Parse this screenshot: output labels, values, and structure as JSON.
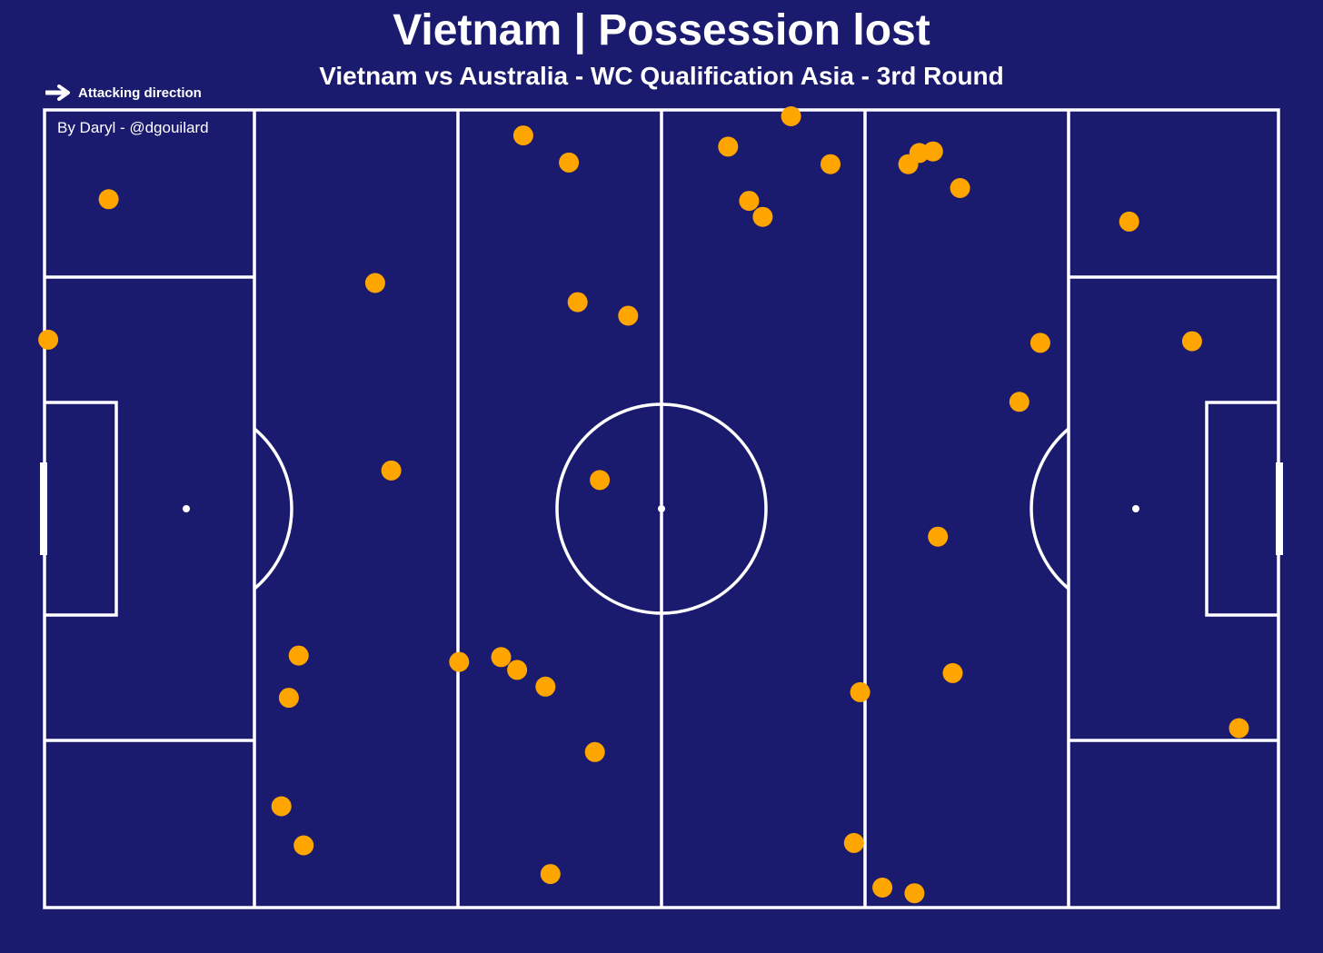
{
  "header": {
    "title": "Vietnam | Possession lost",
    "subtitle": "Vietnam vs Australia - WC Qualification Asia - 3rd Round"
  },
  "attacking_direction": {
    "label": "Attacking direction",
    "icon": "arrow-right-icon"
  },
  "credit": "By Daryl - @dgouilard",
  "colors": {
    "background": "#1a1a6e",
    "lines": "#ffffff",
    "marker": "#ffa500"
  },
  "chart_data": {
    "type": "scatter",
    "title": "Vietnam | Possession lost",
    "subtitle": "Vietnam vs Australia - WC Qualification Asia - 3rd Round",
    "xlim": [
      0,
      100
    ],
    "ylim": [
      0,
      100
    ],
    "grid": false,
    "marker_color": "#ffa500",
    "points": [
      {
        "x": 5.2,
        "y": 88.8
      },
      {
        "x": 0.3,
        "y": 71.2
      },
      {
        "x": 26.8,
        "y": 78.3
      },
      {
        "x": 28.1,
        "y": 54.8
      },
      {
        "x": 20.6,
        "y": 31.6
      },
      {
        "x": 19.8,
        "y": 26.3
      },
      {
        "x": 19.2,
        "y": 12.7
      },
      {
        "x": 21.0,
        "y": 7.8
      },
      {
        "x": 38.8,
        "y": 96.8
      },
      {
        "x": 42.5,
        "y": 93.4
      },
      {
        "x": 43.2,
        "y": 75.9
      },
      {
        "x": 47.3,
        "y": 74.2
      },
      {
        "x": 45.0,
        "y": 53.6
      },
      {
        "x": 33.6,
        "y": 30.8
      },
      {
        "x": 37.0,
        "y": 31.4
      },
      {
        "x": 38.3,
        "y": 29.8
      },
      {
        "x": 40.6,
        "y": 27.7
      },
      {
        "x": 44.6,
        "y": 19.5
      },
      {
        "x": 41.0,
        "y": 4.2
      },
      {
        "x": 55.4,
        "y": 95.4
      },
      {
        "x": 60.5,
        "y": 99.2
      },
      {
        "x": 57.1,
        "y": 88.6
      },
      {
        "x": 58.2,
        "y": 86.6
      },
      {
        "x": 63.7,
        "y": 93.2
      },
      {
        "x": 70.0,
        "y": 93.2
      },
      {
        "x": 70.9,
        "y": 94.6
      },
      {
        "x": 72.0,
        "y": 94.8
      },
      {
        "x": 74.2,
        "y": 90.2
      },
      {
        "x": 66.1,
        "y": 27.0
      },
      {
        "x": 65.6,
        "y": 8.1
      },
      {
        "x": 67.9,
        "y": 2.5
      },
      {
        "x": 70.5,
        "y": 1.8
      },
      {
        "x": 72.4,
        "y": 46.5
      },
      {
        "x": 73.6,
        "y": 29.4
      },
      {
        "x": 80.7,
        "y": 70.8
      },
      {
        "x": 79.0,
        "y": 63.4
      },
      {
        "x": 87.9,
        "y": 86.0
      },
      {
        "x": 93.0,
        "y": 71.0
      },
      {
        "x": 96.8,
        "y": 22.5
      }
    ]
  }
}
